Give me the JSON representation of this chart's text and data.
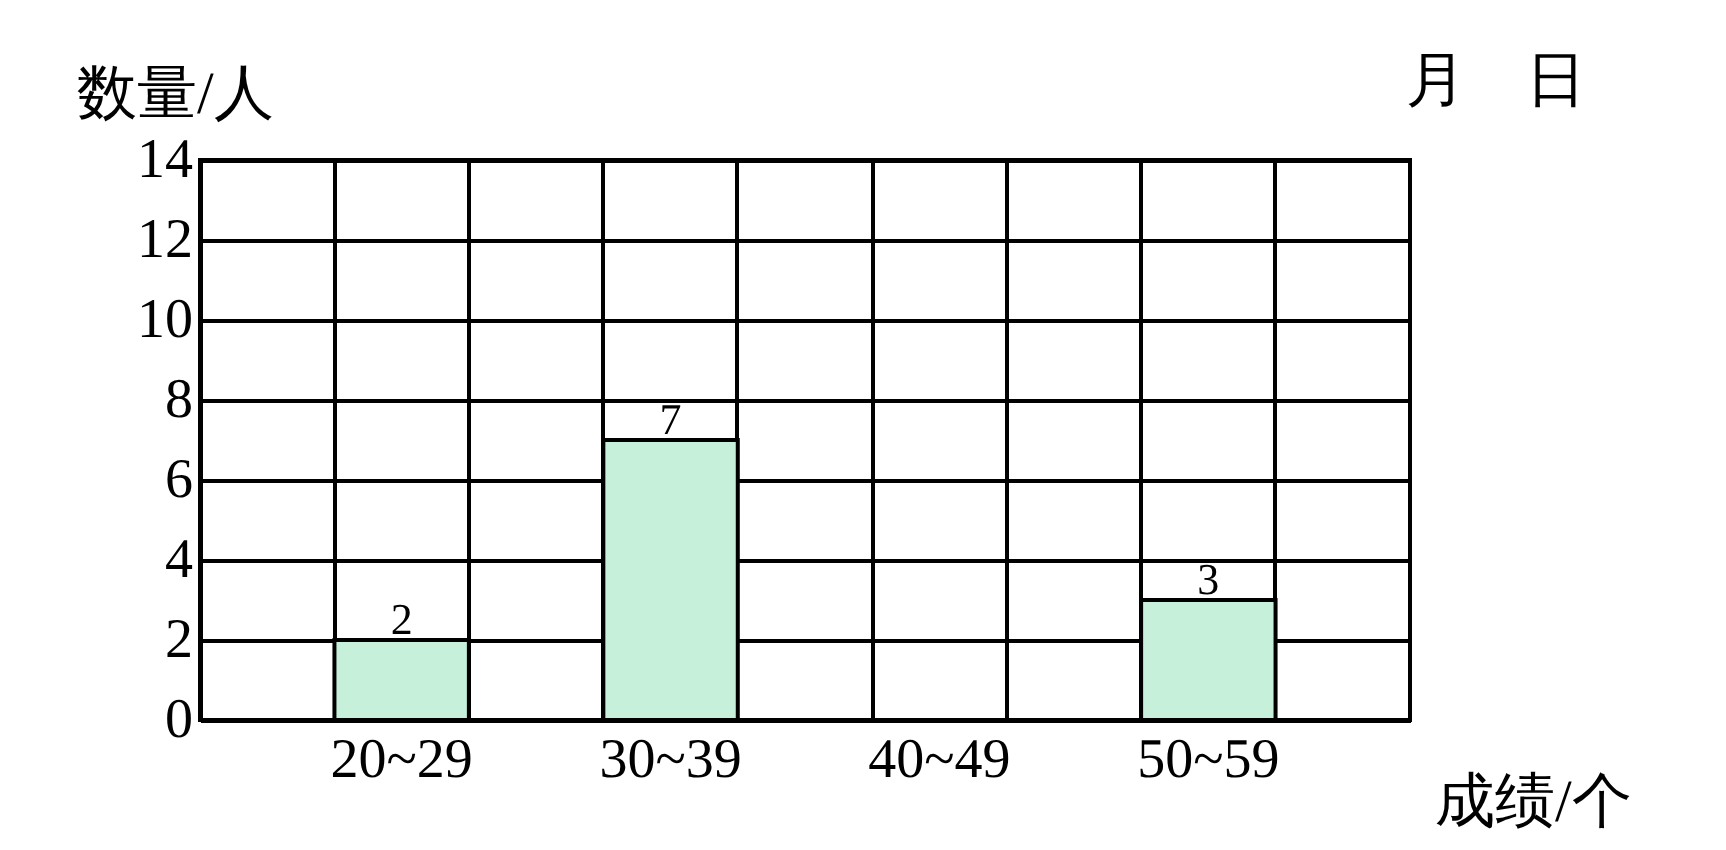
{
  "chart_data": {
    "type": "bar",
    "ylabel": "数量/人",
    "xlabel": "成绩/个",
    "annotations": [
      "月　日"
    ],
    "categories": [
      null,
      "20~29",
      null,
      "30~39",
      null,
      "40~49",
      null,
      "50~59",
      null
    ],
    "values": [
      null,
      2,
      null,
      7,
      null,
      null,
      null,
      3,
      null
    ],
    "value_labels": [
      null,
      "2",
      null,
      "7",
      null,
      null,
      null,
      "3",
      null
    ],
    "color": "#c6f0da",
    "ylim": [
      0,
      14
    ],
    "yticks": [
      0,
      2,
      4,
      6,
      8,
      10,
      12,
      14
    ],
    "grid": true
  }
}
